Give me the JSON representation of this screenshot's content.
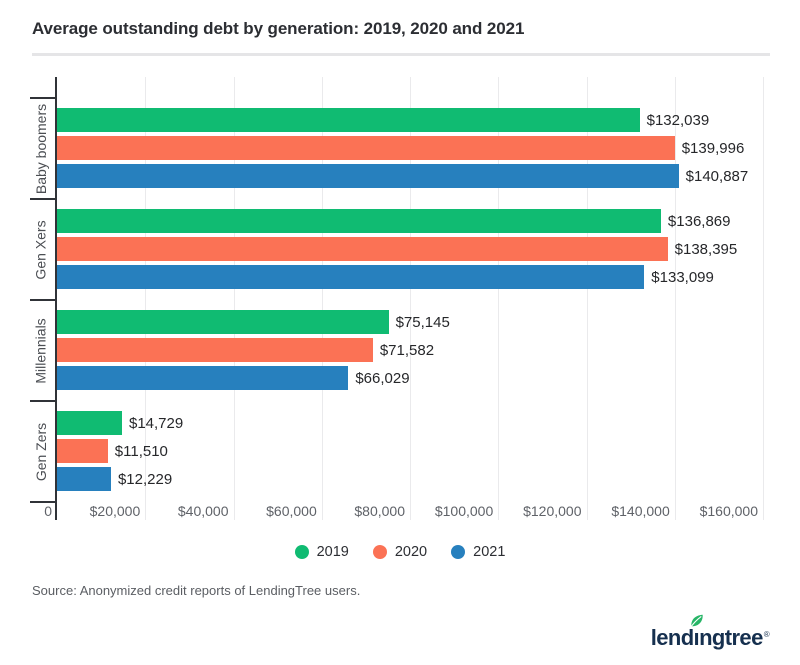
{
  "header": {
    "title": "Average outstanding debt by generation: 2019, 2020 and 2021"
  },
  "chart_data": {
    "type": "bar",
    "orientation": "horizontal",
    "title": "Average outstanding debt by generation: 2019, 2020 and 2021",
    "categories": [
      "Baby boomers",
      "Gen Xers",
      "Millennials",
      "Gen Zers"
    ],
    "series": [
      {
        "name": "2019",
        "color": "#10bb72",
        "values": [
          132039,
          136869,
          75145,
          14729
        ],
        "display": [
          "$132,039",
          "$136,869",
          "$75,145",
          "$14,729"
        ]
      },
      {
        "name": "2020",
        "color": "#fb7255",
        "values": [
          139996,
          138395,
          71582,
          11510
        ],
        "display": [
          "$139,996",
          "$138,395",
          "$71,582",
          "$11,510"
        ]
      },
      {
        "name": "2021",
        "color": "#2780be",
        "values": [
          140887,
          133099,
          66029,
          12229
        ],
        "display": [
          "$140,887",
          "$133,099",
          "$66,029",
          "$12,229"
        ]
      }
    ],
    "xlim": [
      0,
      160000
    ],
    "x_ticks": [
      {
        "value": 0,
        "label": "0"
      },
      {
        "value": 20000,
        "label": "$20,000"
      },
      {
        "value": 40000,
        "label": "$40,000"
      },
      {
        "value": 60000,
        "label": "$60,000"
      },
      {
        "value": 80000,
        "label": "$80,000"
      },
      {
        "value": 100000,
        "label": "$100,000"
      },
      {
        "value": 120000,
        "label": "$120,000"
      },
      {
        "value": 140000,
        "label": "$140,000"
      },
      {
        "value": 160000,
        "label": "$160,000"
      }
    ],
    "grid": true,
    "legend_position": "bottom"
  },
  "legend": {
    "items": [
      {
        "label": "2019",
        "color": "#10bb72"
      },
      {
        "label": "2020",
        "color": "#fb7255"
      },
      {
        "label": "2021",
        "color": "#2780be"
      }
    ]
  },
  "footer": {
    "source": "Source: Anonymized credit reports of LendingTree users."
  },
  "logo": {
    "brand": "lendingtree",
    "part1": "lend",
    "dotless_i": "ı",
    "part2": "ngtree",
    "registered": "®",
    "text_color": "#16304f",
    "leaf_color": "#27b567"
  }
}
